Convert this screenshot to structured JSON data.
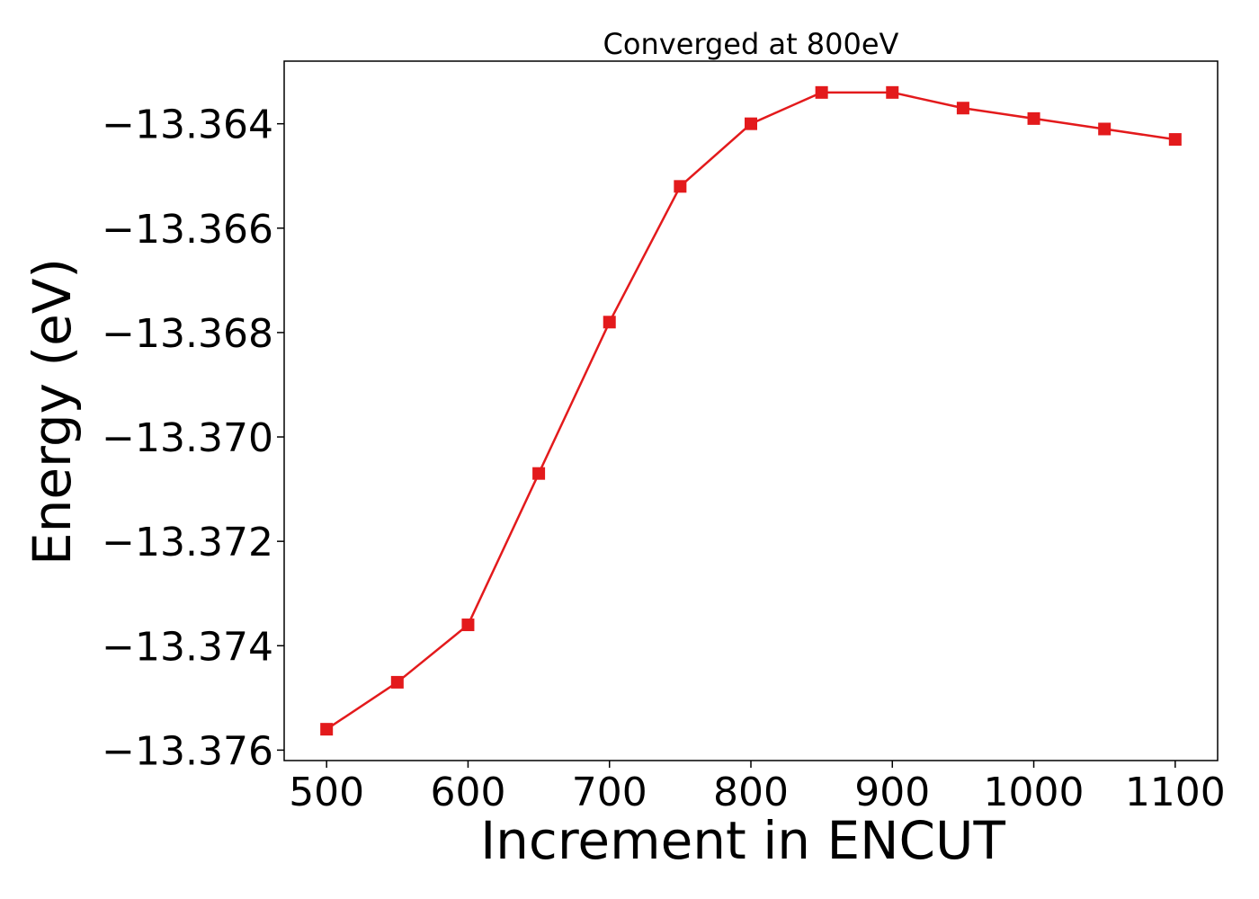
{
  "chart_data": {
    "type": "line",
    "title": "Converged at 800eV",
    "xlabel": "Increment in ENCUT",
    "ylabel": "Energy (eV)",
    "x": [
      500,
      550,
      600,
      650,
      700,
      750,
      800,
      850,
      900,
      950,
      1000,
      1050,
      1100
    ],
    "x_ticks": [
      500,
      600,
      700,
      800,
      900,
      1000,
      1100
    ],
    "x_tick_labels": [
      "500",
      "600",
      "700",
      "800",
      "900",
      "1000",
      "1100"
    ],
    "xlim": [
      470,
      1130
    ],
    "y_ticks": [
      -13.376,
      -13.374,
      -13.372,
      -13.37,
      -13.368,
      -13.366,
      -13.364
    ],
    "y_tick_labels": [
      "−13.376",
      "−13.374",
      "−13.372",
      "−13.370",
      "−13.368",
      "−13.366",
      "−13.364"
    ],
    "ylim": [
      -13.3762,
      -13.3628
    ],
    "grid": false,
    "series": [
      {
        "color": "#e31a1c",
        "marker": "square",
        "values": [
          -13.3756,
          -13.3747,
          -13.3736,
          -13.3707,
          -13.3678,
          -13.3652,
          -13.364,
          -13.3634,
          -13.3634,
          -13.3637,
          -13.3639,
          -13.3641,
          -13.3643
        ]
      }
    ]
  }
}
